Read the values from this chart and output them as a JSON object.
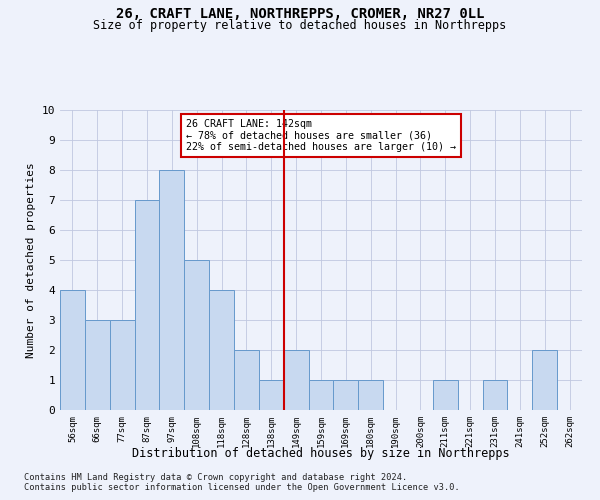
{
  "title1": "26, CRAFT LANE, NORTHREPPS, CROMER, NR27 0LL",
  "title2": "Size of property relative to detached houses in Northrepps",
  "xlabel": "Distribution of detached houses by size in Northrepps",
  "ylabel": "Number of detached properties",
  "bin_labels": [
    "56sqm",
    "66sqm",
    "77sqm",
    "87sqm",
    "97sqm",
    "108sqm",
    "118sqm",
    "128sqm",
    "138sqm",
    "149sqm",
    "159sqm",
    "169sqm",
    "180sqm",
    "190sqm",
    "200sqm",
    "211sqm",
    "221sqm",
    "231sqm",
    "241sqm",
    "252sqm",
    "262sqm"
  ],
  "bar_values": [
    4,
    3,
    3,
    7,
    8,
    5,
    4,
    2,
    1,
    2,
    1,
    1,
    1,
    0,
    0,
    1,
    0,
    1,
    0,
    2,
    0
  ],
  "bar_color": "#c8d9f0",
  "bar_edgecolor": "#6699cc",
  "vline_bin": 8,
  "vline_color": "#cc0000",
  "annotation_line1": "26 CRAFT LANE: 142sqm",
  "annotation_line2": "← 78% of detached houses are smaller (36)",
  "annotation_line3": "22% of semi-detached houses are larger (10) →",
  "annotation_box_color": "#ffffff",
  "annotation_box_edgecolor": "#cc0000",
  "ylim": [
    0,
    10
  ],
  "yticks": [
    0,
    1,
    2,
    3,
    4,
    5,
    6,
    7,
    8,
    9,
    10
  ],
  "footer1": "Contains HM Land Registry data © Crown copyright and database right 2024.",
  "footer2": "Contains public sector information licensed under the Open Government Licence v3.0.",
  "bg_color": "#eef2fb",
  "grid_color": "#c0c8e0"
}
